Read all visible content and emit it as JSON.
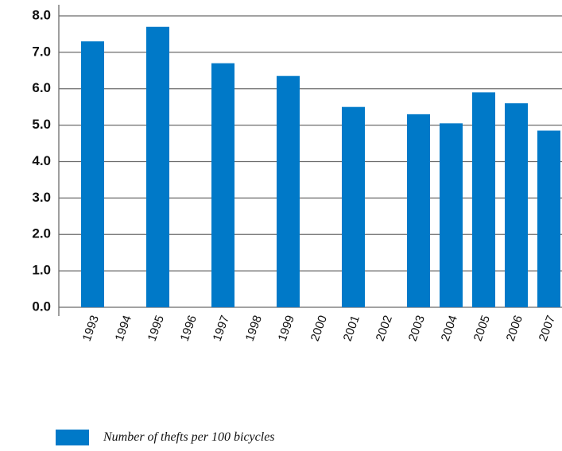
{
  "chart_data": {
    "type": "bar",
    "categories": [
      "1993",
      "1994",
      "1995",
      "1996",
      "1997",
      "1998",
      "1999",
      "2000",
      "2001",
      "2002",
      "2003",
      "2004",
      "2005",
      "2006",
      "2007"
    ],
    "series": [
      {
        "name": "Number of thefts per 100 bicycles",
        "values": [
          7.3,
          null,
          7.7,
          null,
          6.7,
          null,
          6.35,
          null,
          5.5,
          null,
          5.3,
          5.05,
          5.9,
          5.6,
          4.85
        ]
      }
    ],
    "yticks": [
      "0.0",
      "1.0",
      "2.0",
      "3.0",
      "4.0",
      "5.0",
      "6.0",
      "7.0",
      "8.0"
    ],
    "ylim": [
      0,
      8
    ],
    "grid": true,
    "legend_position": "bottom-left",
    "bar_color": "#0079C8",
    "gridline_color": "#6b6b6b"
  }
}
